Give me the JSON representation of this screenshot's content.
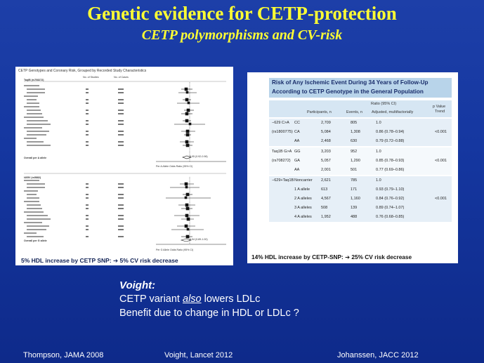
{
  "title": "Genetic evidence for CETP-protection",
  "subtitle": "CETP polymorphisms and CV-risk",
  "forest": {
    "heading": "CETP Genotypes and Coronary Risk, Grouped by Recorded Study Characteristics",
    "col_studies": "No. of Studies",
    "col_cases": "No. of Cases",
    "section1": "TaqIB (rs708272)",
    "section2": "I405V (rs5882)",
    "overall1": "Overall per A allele",
    "overall2": "Overall per G allele",
    "axis_label1": "Per A Allele Odds Ratio (95% CI)",
    "axis_label2": "Per G Allele Odds Ratio (95% CI)",
    "summary1": "0.95 (0.92-0.98)",
    "summary2": "0.94 (0.89-1.00)"
  },
  "caption_left": "5% HDL increase by CETP SNP:  ➔ 5% CV risk decrease",
  "table": {
    "title_line1": "Risk of Any Ischemic Event During 34 Years of Follow-Up",
    "title_line2": "According to CETP Genotype in the General Population",
    "h_ratio": "Ratio (95% CI)",
    "h_participants": "Participants, n",
    "h_events": "Events, n",
    "h_adjusted": "Adjusted, multifactorially",
    "h_pvalue": "p Value",
    "h_trend": "Trend",
    "rows": [
      {
        "snp": "−629 C>A",
        "geno": "CC",
        "n": "2,709",
        "e": "805",
        "r": "1.0",
        "p": ""
      },
      {
        "snp": "(rs1800775)",
        "geno": "CA",
        "n": "5,084",
        "e": "1,308",
        "r": "0.86 (0.78–0.94)",
        "p": "<0.001"
      },
      {
        "snp": "",
        "geno": "AA",
        "n": "2,468",
        "e": "630",
        "r": "0.79 (0.72–0.88)",
        "p": ""
      },
      {
        "snp": "Taq1B G>A",
        "geno": "GG",
        "n": "3,203",
        "e": "952",
        "r": "1.0",
        "p": ""
      },
      {
        "snp": "(rs708272)",
        "geno": "GA",
        "n": "5,057",
        "e": "1,290",
        "r": "0.85 (0.78–0.93)",
        "p": "<0.001"
      },
      {
        "snp": "",
        "geno": "AA",
        "n": "2,001",
        "e": "501",
        "r": "0.77 (0.69–0.86)",
        "p": ""
      },
      {
        "snp": "−629+Taq1B",
        "geno": "Noncarrier",
        "n": "2,621",
        "e": "785",
        "r": "1.0",
        "p": ""
      },
      {
        "snp": "",
        "geno": "1 A allele",
        "n": "613",
        "e": "171",
        "r": "0.93 (0.79–1.10)",
        "p": ""
      },
      {
        "snp": "",
        "geno": "2 A alleles",
        "n": "4,567",
        "e": "1,160",
        "r": "0.84 (0.76–0.92)",
        "p": "<0.001"
      },
      {
        "snp": "",
        "geno": "3 A alleles",
        "n": "508",
        "e": "139",
        "r": "0.89 (0.74–1.07)",
        "p": ""
      },
      {
        "snp": "",
        "geno": "4 A alleles",
        "n": "1,952",
        "e": "488",
        "r": "0.76 (0.68–0.85)",
        "p": ""
      }
    ]
  },
  "caption_right": "14% HDL increase by CETP-SNP:  ➔ 25% CV risk decrease",
  "voight_label": "Voight:",
  "line1_pre": "CETP variant ",
  "line1_em": "also",
  "line1_post": " lowers LDLc",
  "line2": "Benefit due to change in HDL or LDLc ?",
  "refs": {
    "left": "Thompson,  JAMA 2008",
    "mid": "Voight, Lancet 2012",
    "right": "Johanssen, JACC 2012"
  }
}
